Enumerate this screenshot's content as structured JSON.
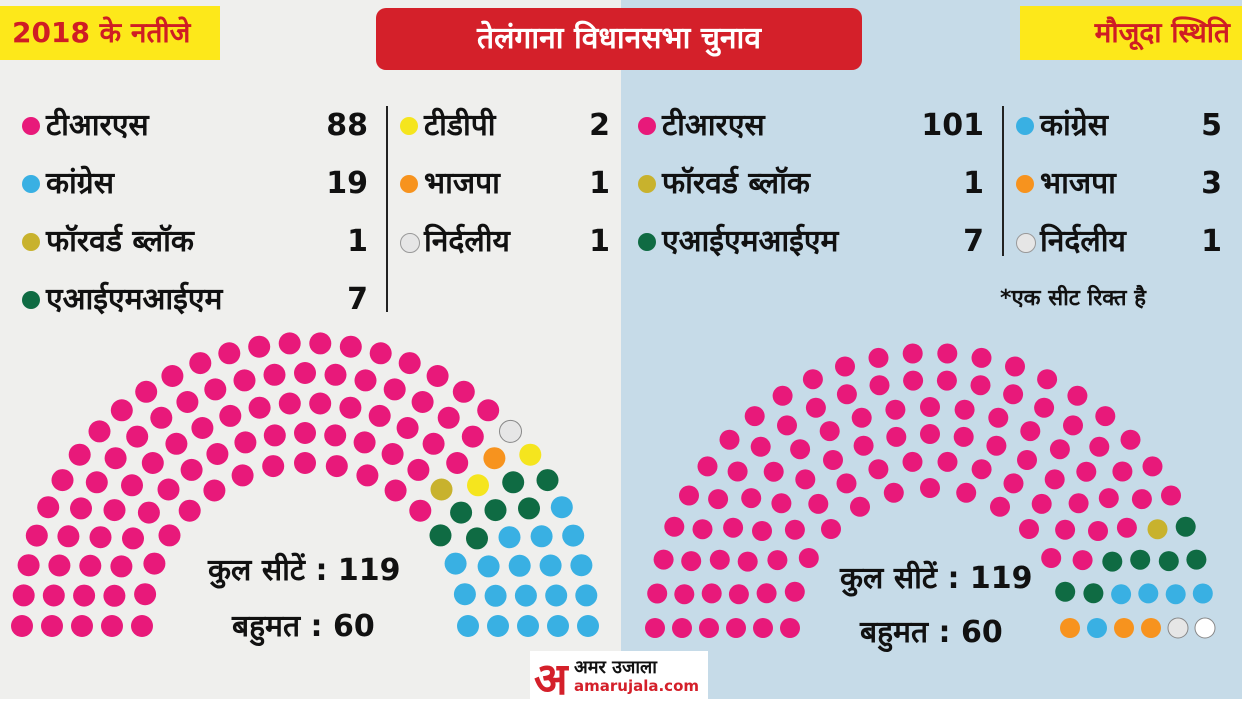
{
  "header": {
    "left_tag": "2018 के नतीजे",
    "title": "तेलंगाना विधानसभा चुनाव",
    "right_tag": "मौजूदा स्थिति"
  },
  "colors": {
    "trs": "#e8197a",
    "congress": "#39b0e3",
    "forward_bloc": "#c8b22d",
    "aimim": "#0f6b43",
    "tdp": "#f5e51e",
    "bjp": "#f7931e",
    "independent": "#e6e6e6"
  },
  "results_2018": {
    "col1": [
      {
        "label": "टीआरएस",
        "count": "88",
        "color_key": "trs"
      },
      {
        "label": "कांग्रेस",
        "count": "19",
        "color_key": "congress"
      },
      {
        "label": "फॉरवर्ड ब्लॉक",
        "count": "1",
        "color_key": "forward_bloc"
      },
      {
        "label": "एआईएमआईएम",
        "count": "7",
        "color_key": "aimim"
      }
    ],
    "col2": [
      {
        "label": "टीडीपी",
        "count": "2",
        "color_key": "tdp"
      },
      {
        "label": "भाजपा",
        "count": "1",
        "color_key": "bjp"
      },
      {
        "label": "निर्दलीय",
        "count": "1",
        "color_key": "independent"
      }
    ],
    "total_seats": "कुल सीटें : 119",
    "majority": "बहुमत : 60"
  },
  "current_status": {
    "col1": [
      {
        "label": "टीआरएस",
        "count": "101",
        "color_key": "trs"
      },
      {
        "label": "फॉरवर्ड ब्लॉक",
        "count": "1",
        "color_key": "forward_bloc"
      },
      {
        "label": "एआईएमआईएम",
        "count": "7",
        "color_key": "aimim"
      }
    ],
    "col2": [
      {
        "label": "कांग्रेस",
        "count": "5",
        "color_key": "congress"
      },
      {
        "label": "भाजपा",
        "count": "3",
        "color_key": "bjp"
      },
      {
        "label": "निर्दलीय",
        "count": "1",
        "color_key": "independent"
      }
    ],
    "note": "*एक सीट रिक्त है",
    "total_seats": "कुल सीटें : 119",
    "majority": "बहुमत : 60"
  },
  "logo": {
    "mark": "अ",
    "name": "अमर उजाला",
    "url": "amarujala.com"
  },
  "chart_data": [
    {
      "type": "parliament",
      "title": "2018 के नतीजे",
      "total": 119,
      "majority": 60,
      "series": [
        {
          "name": "टीआरएस",
          "value": 88,
          "color": "#e8197a"
        },
        {
          "name": "फॉरवर्ड ब्लॉक",
          "value": 1,
          "color": "#c8b22d"
        },
        {
          "name": "निर्दलीय",
          "value": 1,
          "color": "#e6e6e6"
        },
        {
          "name": "भाजपा",
          "value": 1,
          "color": "#f7931e"
        },
        {
          "name": "टीडीपी",
          "value": 2,
          "color": "#f5e51e"
        },
        {
          "name": "एआईएमआईएम",
          "value": 7,
          "color": "#0f6b43"
        },
        {
          "name": "कांग्रेस",
          "value": 19,
          "color": "#39b0e3"
        }
      ]
    },
    {
      "type": "parliament",
      "title": "मौजूदा स्थिति",
      "total": 119,
      "majority": 60,
      "series": [
        {
          "name": "टीआरएस",
          "value": 101,
          "color": "#e8197a"
        },
        {
          "name": "फॉरवर्ड ब्लॉक",
          "value": 1,
          "color": "#c8b22d"
        },
        {
          "name": "एआईएमआईएम",
          "value": 7,
          "color": "#0f6b43"
        },
        {
          "name": "कांग्रेस",
          "value": 5,
          "color": "#39b0e3"
        },
        {
          "name": "भाजपा",
          "value": 3,
          "color": "#f7931e"
        },
        {
          "name": "निर्दलीय",
          "value": 1,
          "color": "#e6e6e6"
        },
        {
          "name": "रिक्त",
          "value": 1,
          "color": "#ffffff"
        }
      ]
    }
  ]
}
